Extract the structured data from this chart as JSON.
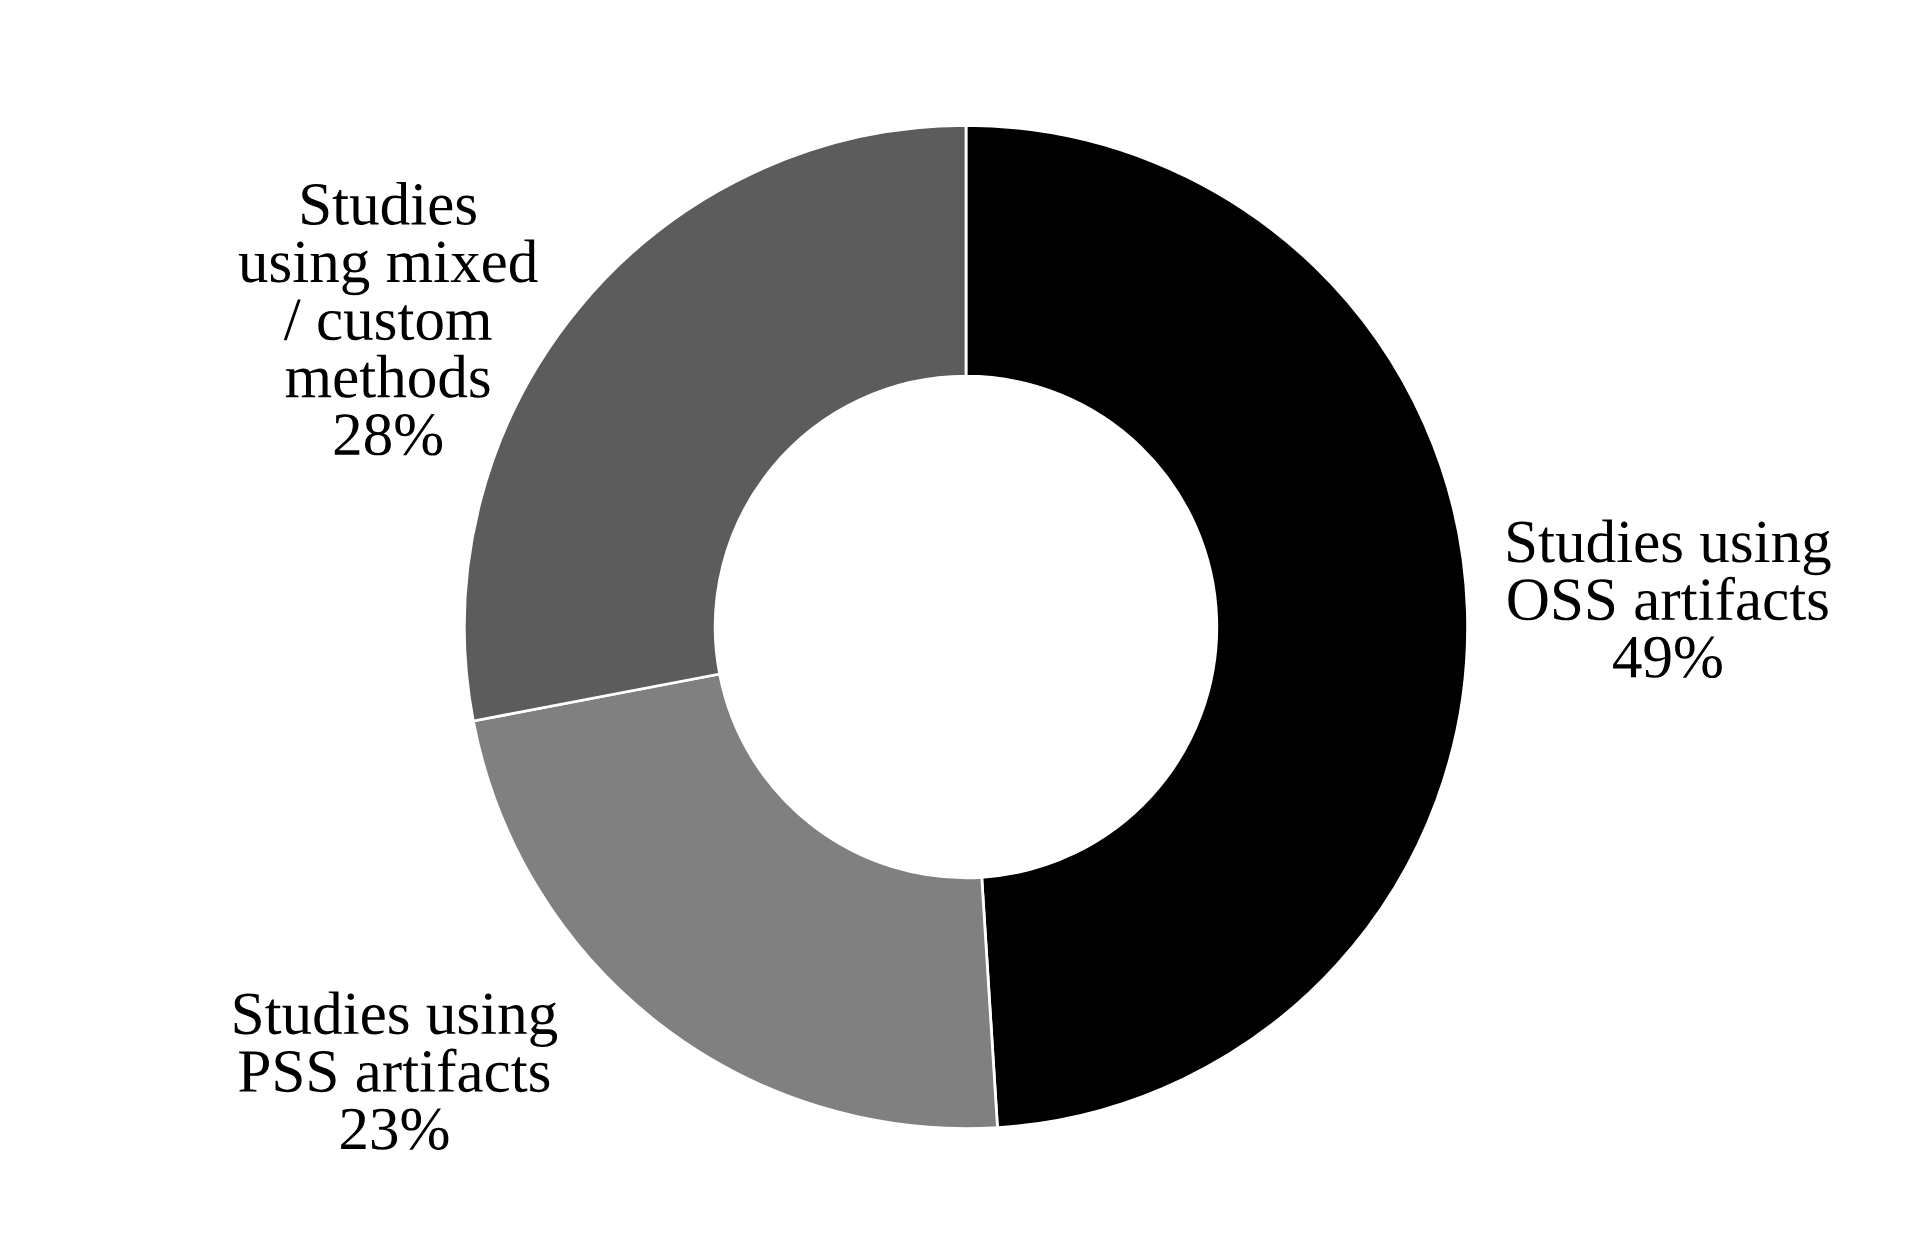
{
  "chart_data": {
    "type": "donut",
    "categories": [
      "Studies using OSS artifacts",
      "Studies using PSS artifacts",
      "Studies using mixed / custom methods"
    ],
    "values": [
      49,
      23,
      28
    ],
    "colors": [
      "#000000",
      "#808080",
      "#5c5c5c"
    ],
    "value_labels": [
      "49%",
      "23%",
      "28%"
    ],
    "legend": false
  }
}
